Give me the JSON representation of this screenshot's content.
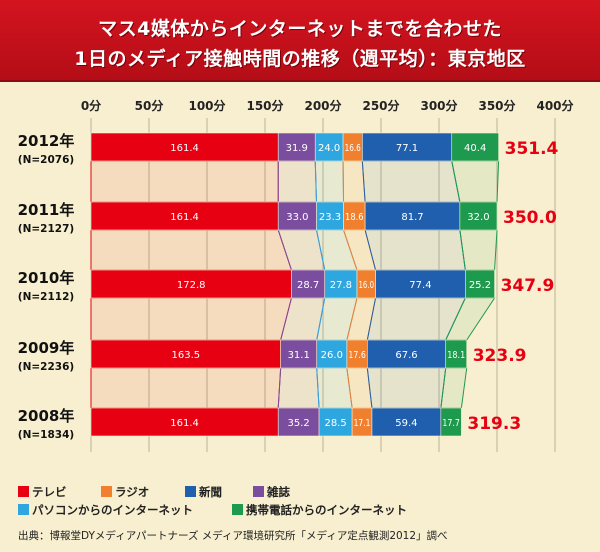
{
  "header": {
    "title_line1": "マス4媒体からインターネットまでを合わせた",
    "title_line2": "1日のメディア接触時間の推移（週平均）：東京地区"
  },
  "chart_data": {
    "type": "bar",
    "orientation": "horizontal",
    "stacked": true,
    "x_ticks": [
      "0分",
      "50分",
      "100分",
      "150分",
      "200分",
      "250分",
      "300分",
      "350分",
      "400分"
    ],
    "xlim": [
      0,
      400
    ],
    "grid": true,
    "categories": [
      {
        "year": "2012年",
        "n": "(N=2076)"
      },
      {
        "year": "2011年",
        "n": "(N=2127)"
      },
      {
        "year": "2010年",
        "n": "(N=2112)"
      },
      {
        "year": "2009年",
        "n": "(N=2236)"
      },
      {
        "year": "2008年",
        "n": "(N=1834)"
      }
    ],
    "series": [
      {
        "name": "テレビ",
        "color": "#e60012",
        "values": [
          161.4,
          161.4,
          172.8,
          163.5,
          161.4
        ]
      },
      {
        "name": "雑誌",
        "color": "#7b4d9e",
        "values": [
          31.9,
          33.0,
          28.7,
          31.1,
          35.2
        ]
      },
      {
        "name": "パソコンからのインターネット",
        "color": "#2ea6e0",
        "values": [
          24.0,
          23.3,
          27.8,
          26.0,
          28.5
        ]
      },
      {
        "name": "ラジオ",
        "color": "#f07f2e",
        "values": [
          16.6,
          18.6,
          16.0,
          17.6,
          17.1
        ]
      },
      {
        "name": "新聞",
        "color": "#1f5fae",
        "values": [
          77.1,
          81.7,
          77.4,
          67.6,
          59.4
        ]
      },
      {
        "name": "携帯電話からのインターネット",
        "color": "#1e9a4f",
        "values": [
          40.4,
          32.0,
          25.2,
          18.1,
          17.7
        ]
      }
    ],
    "value_labels": [
      [
        "161.4",
        "31.9",
        "24.0",
        "16.6",
        "77.1",
        "40.4"
      ],
      [
        "161.4",
        "33.0",
        "23.3",
        "18.6",
        "81.7",
        "32.0"
      ],
      [
        "172.8",
        "28.7",
        "27.8",
        "16.0",
        "77.4",
        "25.2"
      ],
      [
        "163.5",
        "31.1",
        "26.0",
        "17.6",
        "67.6",
        "18.1"
      ],
      [
        "161.4",
        "35.2",
        "28.5",
        "17.1",
        "59.4",
        "17.7"
      ]
    ],
    "totals": [
      "351.4",
      "350.0",
      "347.9",
      "323.9",
      "319.3"
    ],
    "total_color": "#e60012"
  },
  "legend": [
    {
      "label": "テレビ",
      "color": "#e60012"
    },
    {
      "label": "ラジオ",
      "color": "#f07f2e"
    },
    {
      "label": "新聞",
      "color": "#1f5fae"
    },
    {
      "label": "雑誌",
      "color": "#7b4d9e"
    },
    {
      "label": "パソコンからのインターネット",
      "color": "#2ea6e0"
    },
    {
      "label": "携帯電話からのインターネット",
      "color": "#1e9a4f"
    }
  ],
  "source": "出典：博報堂DYメディアパートナーズ メディア環境研究所「メディア定点観測2012」調べ"
}
